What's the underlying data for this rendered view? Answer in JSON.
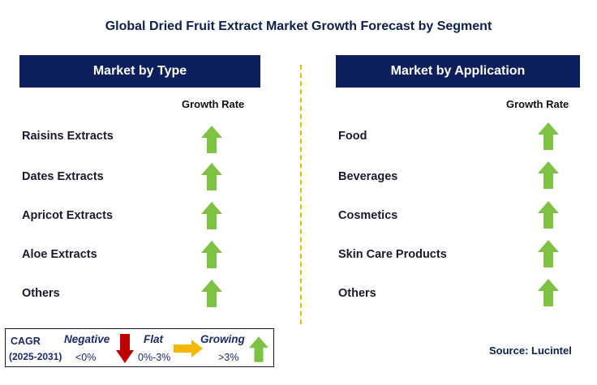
{
  "title": "Global Dried Fruit Extract Market Growth Forecast by Segment",
  "left_panel": {
    "header": "Market by Type",
    "growth_rate_label": "Growth Rate",
    "items": [
      {
        "label": "Raisins Extracts",
        "trend": "growing"
      },
      {
        "label": "Dates Extracts",
        "trend": "growing"
      },
      {
        "label": "Apricot Extracts",
        "trend": "growing"
      },
      {
        "label": "Aloe Extracts",
        "trend": "growing"
      },
      {
        "label": "Others",
        "trend": "growing"
      }
    ]
  },
  "right_panel": {
    "header": "Market by Application",
    "growth_rate_label": "Growth Rate",
    "items": [
      {
        "label": "Food",
        "trend": "growing"
      },
      {
        "label": "Beverages",
        "trend": "growing"
      },
      {
        "label": "Cosmetics",
        "trend": "growing"
      },
      {
        "label": "Skin Care Products",
        "trend": "growing"
      },
      {
        "label": "Others",
        "trend": "growing"
      }
    ]
  },
  "legend": {
    "cagr_label": "CAGR",
    "period": "(2025-2031)",
    "negative_label": "Negative",
    "negative_range": "<0%",
    "flat_label": "Flat",
    "flat_range": "0%-3%",
    "growing_label": "Growing",
    "growing_range": ">3%"
  },
  "source": "Source: Lucintel",
  "colors": {
    "header_bg": "#0c1f5c",
    "growing_arrow": "#7dc242",
    "negative_arrow": "#c00000",
    "flat_arrow": "#f5b800",
    "divider": "#f2b705"
  }
}
